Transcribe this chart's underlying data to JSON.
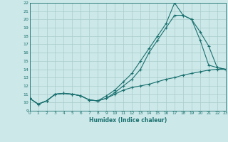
{
  "xlabel": "Humidex (Indice chaleur)",
  "bg_color": "#cce8e8",
  "grid_color": "#aacccc",
  "line_color": "#1a7070",
  "xlim": [
    0,
    23
  ],
  "ylim": [
    9,
    22
  ],
  "xticks": [
    0,
    1,
    2,
    3,
    4,
    5,
    6,
    7,
    8,
    9,
    10,
    11,
    12,
    13,
    14,
    15,
    16,
    17,
    18,
    19,
    20,
    21,
    22,
    23
  ],
  "yticks": [
    9,
    10,
    11,
    12,
    13,
    14,
    15,
    16,
    17,
    18,
    19,
    20,
    21,
    22
  ],
  "series": [
    [
      10.5,
      9.8,
      10.2,
      11.0,
      11.1,
      11.0,
      10.8,
      10.3,
      10.2,
      10.5,
      11.0,
      11.5,
      11.8,
      12.0,
      12.2,
      12.5,
      12.8,
      13.0,
      13.3,
      13.5,
      13.7,
      13.9,
      14.0,
      14.0
    ],
    [
      10.5,
      9.8,
      10.2,
      11.0,
      11.1,
      11.0,
      10.8,
      10.3,
      10.2,
      10.8,
      11.5,
      12.5,
      13.5,
      15.0,
      16.5,
      18.0,
      19.5,
      22.0,
      20.5,
      20.0,
      18.5,
      16.8,
      14.2,
      14.0
    ],
    [
      10.5,
      9.8,
      10.2,
      11.0,
      11.1,
      11.0,
      10.8,
      10.3,
      10.2,
      10.5,
      11.2,
      12.0,
      12.8,
      14.0,
      16.0,
      17.5,
      19.0,
      20.5,
      20.5,
      20.0,
      17.5,
      14.5,
      14.2,
      14.0
    ]
  ]
}
